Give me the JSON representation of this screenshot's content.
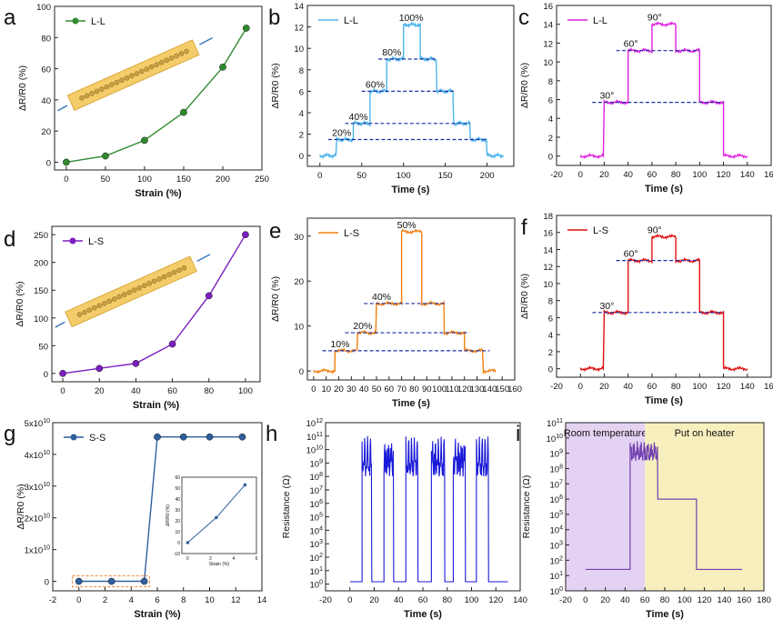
{
  "chart_data": [
    {
      "panel": "a",
      "type": "line",
      "legend": "L-L",
      "color": "#2e8b2e",
      "x": [
        0,
        50,
        100,
        150,
        200,
        230
      ],
      "y": [
        0,
        4,
        14,
        32,
        61,
        86
      ],
      "xlim": [
        -15,
        250
      ],
      "ylim": [
        -5,
        100
      ],
      "xticks": [
        0,
        50,
        100,
        150,
        200,
        250
      ],
      "yticks": [
        0,
        20,
        40,
        60,
        80,
        100
      ],
      "xlabel": "Strain (%)",
      "ylabel": "ΔR/R0 (%)",
      "inset": "stretched fiber illustration"
    },
    {
      "panel": "b",
      "type": "line",
      "legend": "L-L",
      "color": "#4fb6ea",
      "steps": [
        [
          0,
          0
        ],
        [
          20,
          1.5
        ],
        [
          40,
          3
        ],
        [
          60,
          6
        ],
        [
          80,
          9
        ],
        [
          100,
          12.2
        ],
        [
          120,
          9
        ],
        [
          140,
          6
        ],
        [
          160,
          3
        ],
        [
          180,
          1.5
        ],
        [
          200,
          0
        ],
        [
          220,
          0
        ]
      ],
      "levels": [
        1.5,
        3,
        6,
        9
      ],
      "labels": [
        "20%",
        "40%",
        "60%",
        "80%",
        "100%"
      ],
      "xlim": [
        -15,
        232
      ],
      "ylim": [
        -1,
        14
      ],
      "xticks": [
        0,
        50,
        100,
        150,
        200
      ],
      "yticks": [
        0,
        2,
        4,
        6,
        8,
        10,
        12,
        14
      ],
      "xlabel": "Time (s)",
      "ylabel": "ΔR/R0 (%)"
    },
    {
      "panel": "c",
      "type": "line",
      "legend": "L-L",
      "color": "#e020e0",
      "steps": [
        [
          0,
          0
        ],
        [
          20,
          5.7
        ],
        [
          40,
          11.2
        ],
        [
          60,
          14
        ],
        [
          80,
          11.2
        ],
        [
          100,
          5.7
        ],
        [
          120,
          0
        ],
        [
          140,
          0
        ]
      ],
      "levels": [
        5.7,
        11.2
      ],
      "labels": [
        "30°",
        "60°",
        "90°"
      ],
      "xlim": [
        -20,
        160
      ],
      "ylim": [
        -1,
        16
      ],
      "xticks": [
        -20,
        0,
        20,
        40,
        60,
        80,
        100,
        120,
        140,
        160
      ],
      "yticks": [
        0,
        2,
        4,
        6,
        8,
        10,
        12,
        14,
        16
      ],
      "xlabel": "Time (s)",
      "ylabel": "ΔR/R0 (%)"
    },
    {
      "panel": "d",
      "type": "line",
      "legend": "L-S",
      "color": "#7b1fbf",
      "x": [
        0,
        20,
        40,
        60,
        80,
        100
      ],
      "y": [
        0,
        9,
        18,
        53,
        140,
        250
      ],
      "xlim": [
        -6,
        108
      ],
      "ylim": [
        -15,
        265
      ],
      "xticks": [
        0,
        20,
        40,
        60,
        80,
        100
      ],
      "yticks": [
        0,
        50,
        100,
        150,
        200,
        250
      ],
      "xlabel": "Strain (%)",
      "ylabel": "ΔR/R0 (%)",
      "inset": "stretched fiber illustration"
    },
    {
      "panel": "e",
      "type": "line",
      "legend": "L-S",
      "color": "#f08010",
      "steps": [
        [
          0,
          0
        ],
        [
          17,
          4.5
        ],
        [
          35,
          8.5
        ],
        [
          50,
          15
        ],
        [
          70,
          31
        ],
        [
          86,
          15
        ],
        [
          104,
          8.5
        ],
        [
          120,
          4.5
        ],
        [
          135,
          0
        ],
        [
          145,
          0
        ]
      ],
      "levels": [
        4.5,
        8.5,
        15
      ],
      "labels": [
        "10%",
        "20%",
        "40%",
        "50%"
      ],
      "xlim": [
        -5,
        160
      ],
      "ylim": [
        -2,
        34
      ],
      "xticks": [
        0,
        10,
        20,
        30,
        40,
        50,
        60,
        70,
        80,
        90,
        100,
        110,
        120,
        130,
        140,
        150,
        160
      ],
      "yticks": [
        0,
        10,
        20,
        30
      ],
      "xlabel": "Time (s)",
      "ylabel": "ΔR/R0 (%)"
    },
    {
      "panel": "f",
      "type": "line",
      "legend": "L-S",
      "color": "#e01010",
      "steps": [
        [
          0,
          0
        ],
        [
          20,
          6.6
        ],
        [
          40,
          12.7
        ],
        [
          60,
          15.5
        ],
        [
          80,
          12.7
        ],
        [
          100,
          6.6
        ],
        [
          120,
          0
        ],
        [
          140,
          0
        ]
      ],
      "levels": [
        6.6,
        12.7
      ],
      "labels": [
        "30°",
        "60°",
        "90°"
      ],
      "xlim": [
        -20,
        160
      ],
      "ylim": [
        -1,
        18
      ],
      "xticks": [
        -20,
        0,
        20,
        40,
        60,
        80,
        100,
        120,
        140,
        160
      ],
      "yticks": [
        0,
        2,
        4,
        6,
        8,
        10,
        12,
        14,
        16,
        18
      ],
      "xlabel": "Time (s)",
      "ylabel": "ΔR/R0 (%)"
    },
    {
      "panel": "g",
      "type": "line",
      "legend": "S-S",
      "color": "#2f5f9e",
      "x": [
        0,
        2.5,
        5,
        6,
        8,
        10,
        12.5
      ],
      "y": [
        0,
        0,
        0,
        45500000000.0,
        45500000000.0,
        45500000000.0,
        45500000000.0
      ],
      "xlim": [
        -2,
        14
      ],
      "ylim": [
        -3000000000.0,
        50000000000.0
      ],
      "xticks": [
        -2,
        0,
        2,
        4,
        6,
        8,
        10,
        12,
        14
      ],
      "yticks": [
        0,
        10000000000.0,
        20000000000.0,
        30000000000.0,
        40000000000.0,
        50000000000.0
      ],
      "ytick_labels": [
        "0",
        "1x10",
        "2x10",
        "3x10",
        "4x10",
        "5x10"
      ],
      "ytick_exp": "10",
      "xlabel": "Strain (%)",
      "ylabel": "ΔR/R0 (%)",
      "inset_data": {
        "x": [
          0,
          2.5,
          5
        ],
        "y": [
          0,
          23,
          53
        ],
        "xticks": [
          0,
          2,
          4,
          6
        ],
        "yticks": [
          -10,
          0,
          10,
          20,
          30,
          40,
          50,
          60
        ],
        "xlabel": "Strain (%)",
        "ylabel": "ΔR/R0 (%)"
      }
    },
    {
      "panel": "h",
      "type": "line",
      "color": "#1a1ad8",
      "scale": "log",
      "on_intervals": [
        [
          10,
          18
        ],
        [
          28,
          36
        ],
        [
          46,
          56
        ],
        [
          67,
          78
        ],
        [
          85,
          95
        ],
        [
          104,
          114
        ]
      ],
      "off_level": 1.5,
      "on_range": [
        100000000.0,
        100000000000.0
      ],
      "xlim": [
        -20,
        140
      ],
      "ylim_log": [
        -0.5,
        12
      ],
      "xticks": [
        -20,
        0,
        20,
        40,
        60,
        80,
        100,
        120,
        140
      ],
      "yticks_exp": [
        0,
        1,
        2,
        3,
        4,
        5,
        6,
        7,
        8,
        9,
        10,
        11,
        12
      ],
      "ytick_base": "10",
      "xlabel": "Time (s)",
      "ylabel": "Resistance (Ω)"
    },
    {
      "panel": "i",
      "type": "line",
      "color": "#7040b0",
      "scale": "log",
      "segments": [
        {
          "x": [
            0,
            45
          ],
          "log": 1.4
        },
        {
          "x": [
            45,
            73
          ],
          "log_range": [
            8.5,
            9.8
          ]
        },
        {
          "x": [
            73,
            112
          ],
          "log": 6
        },
        {
          "x": [
            112,
            158
          ],
          "log": 1.4
        }
      ],
      "regions": [
        {
          "label": "Room temperature",
          "x": [
            -20,
            60
          ],
          "color": "#e4d2f2"
        },
        {
          "label": "Put on heater",
          "x": [
            60,
            180
          ],
          "color": "#f7efbe"
        }
      ],
      "xlim": [
        -20,
        180
      ],
      "ylim_log": [
        0,
        11
      ],
      "xticks": [
        -20,
        0,
        20,
        40,
        60,
        80,
        100,
        120,
        140,
        160,
        180
      ],
      "yticks_exp": [
        0,
        1,
        2,
        3,
        4,
        5,
        6,
        7,
        8,
        9,
        10,
        11
      ],
      "ytick_base": "10",
      "xlabel": "Time (s)",
      "ylabel": "Resistance (Ω)"
    }
  ]
}
